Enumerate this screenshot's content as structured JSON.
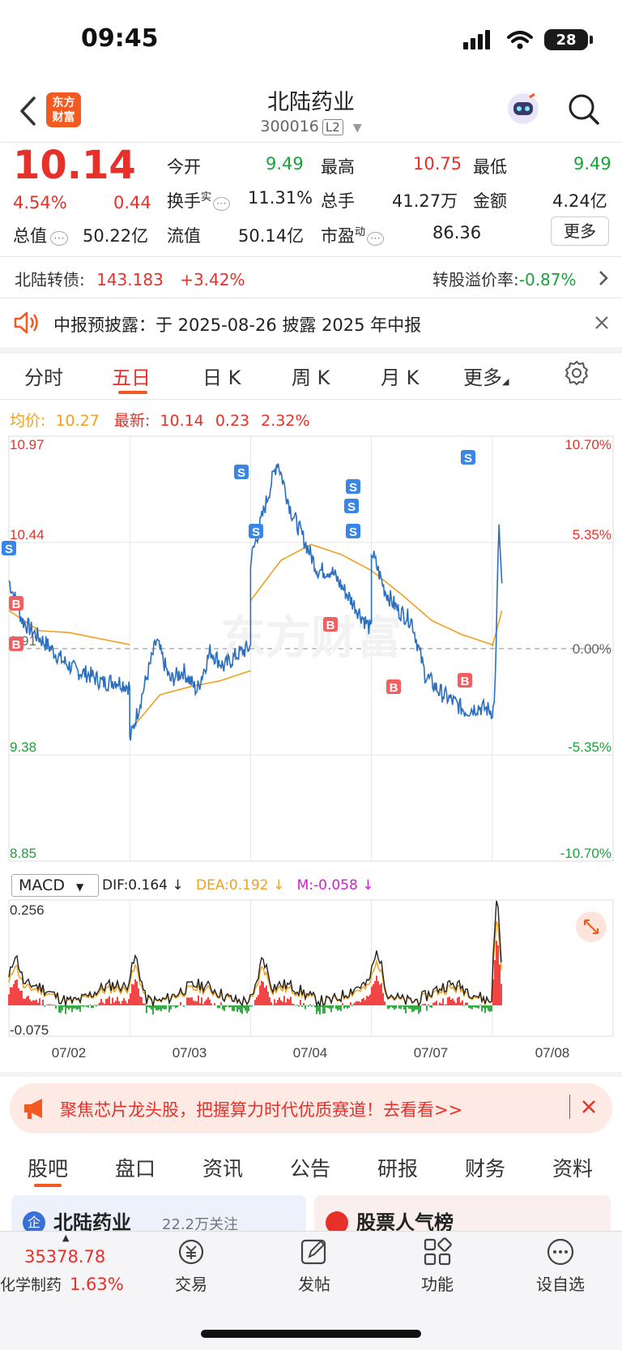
{
  "status_bar": {
    "time": "09:45",
    "battery": "28"
  },
  "header": {
    "logo_text_1": "东方",
    "logo_text_2": "财富",
    "title": "北陆药业",
    "code": "300016",
    "level": "L2"
  },
  "quote": {
    "price": "10.14",
    "change_pct": "4.54%",
    "change": "0.44",
    "rows": [
      [
        {
          "label": "今开",
          "value": "9.49",
          "color": "green"
        },
        {
          "label": "最高",
          "value": "10.75",
          "color": "red"
        },
        {
          "label": "最低",
          "value": "9.49",
          "color": "green"
        }
      ],
      [
        {
          "label": "换手",
          "sup": "实",
          "value": "11.31%",
          "color": "dark"
        },
        {
          "label": "总手",
          "value": "41.27万",
          "color": "dark"
        },
        {
          "label": "金额",
          "value": "4.24亿",
          "color": "dark"
        }
      ],
      [
        {
          "label": "总值",
          "value": "50.22亿",
          "color": "dark"
        },
        {
          "label": "流值",
          "value": "50.14亿",
          "color": "dark"
        },
        {
          "label": "市盈",
          "sup": "动",
          "value": "86.36",
          "color": "dark"
        }
      ]
    ],
    "first_col_value_rows": [
      "50.22亿"
    ],
    "more_label": "更多"
  },
  "bond": {
    "name": "北陆转债:",
    "price": "143.183",
    "change": "+3.42%",
    "premium_label": "转股溢价率:",
    "premium": "-0.87%"
  },
  "notice": {
    "text": "中报预披露：于 2025-08-26 披露 2025 年中报"
  },
  "tabs": [
    "分时",
    "五日",
    "日 K",
    "周 K",
    "月 K",
    "更多"
  ],
  "active_tab": 1,
  "chart_info": {
    "avg_label": "均价:",
    "avg": "10.27",
    "last_label": "最新:",
    "last": "10.14",
    "chg": "0.23",
    "chg_pct": "2.32%"
  },
  "chart_data": [
    {
      "type": "line",
      "title": "",
      "y_left_ticks": [
        "10.97",
        "10.44",
        "9.91",
        "9.38",
        "8.85"
      ],
      "y_right_ticks": [
        "10.70%",
        "5.35%",
        "0.00%",
        "-5.35%",
        "-10.70%"
      ],
      "x_days": [
        "07/02",
        "07/03",
        "07/04",
        "07/07",
        "07/08"
      ],
      "ylim": [
        8.85,
        10.97
      ],
      "reference": 9.91,
      "series": [
        {
          "name": "均价",
          "color": "#f0a020"
        },
        {
          "color": "#2b6fc0"
        }
      ],
      "markers": [
        "S",
        "S",
        "S",
        "S",
        "S",
        "S",
        "S",
        "B",
        "B",
        "B",
        "B",
        "B"
      ]
    },
    {
      "type": "bar",
      "indicator": "MACD",
      "dif_label": "DIF:0.164 ↓",
      "dea_label": "DEA:0.192 ↓",
      "m_label": "M:-0.058 ↓",
      "y_ticks": [
        "0.256",
        "-0.075"
      ],
      "ylim": [
        -0.075,
        0.256
      ]
    }
  ],
  "ad_banner": {
    "text": "聚焦芯片龙头股，把握算力时代优质赛道！去看看>>"
  },
  "bottom_tabs": [
    "股吧",
    "盘口",
    "资讯",
    "公告",
    "研报",
    "财务",
    "资料"
  ],
  "cards": {
    "left": "北陆药业",
    "left_sub": "22.2万关注",
    "right": "股票人气榜"
  },
  "nav": {
    "index_value": "35378.78",
    "index_name": "化学制药",
    "index_pct": "1.63%",
    "items": [
      "交易",
      "发帖",
      "功能",
      "设自选"
    ]
  },
  "colors": {
    "red": "#e8302a",
    "green": "#19a33a",
    "orange": "#f0a020",
    "blue": "#2b6fc0",
    "brand": "#f25a22"
  }
}
